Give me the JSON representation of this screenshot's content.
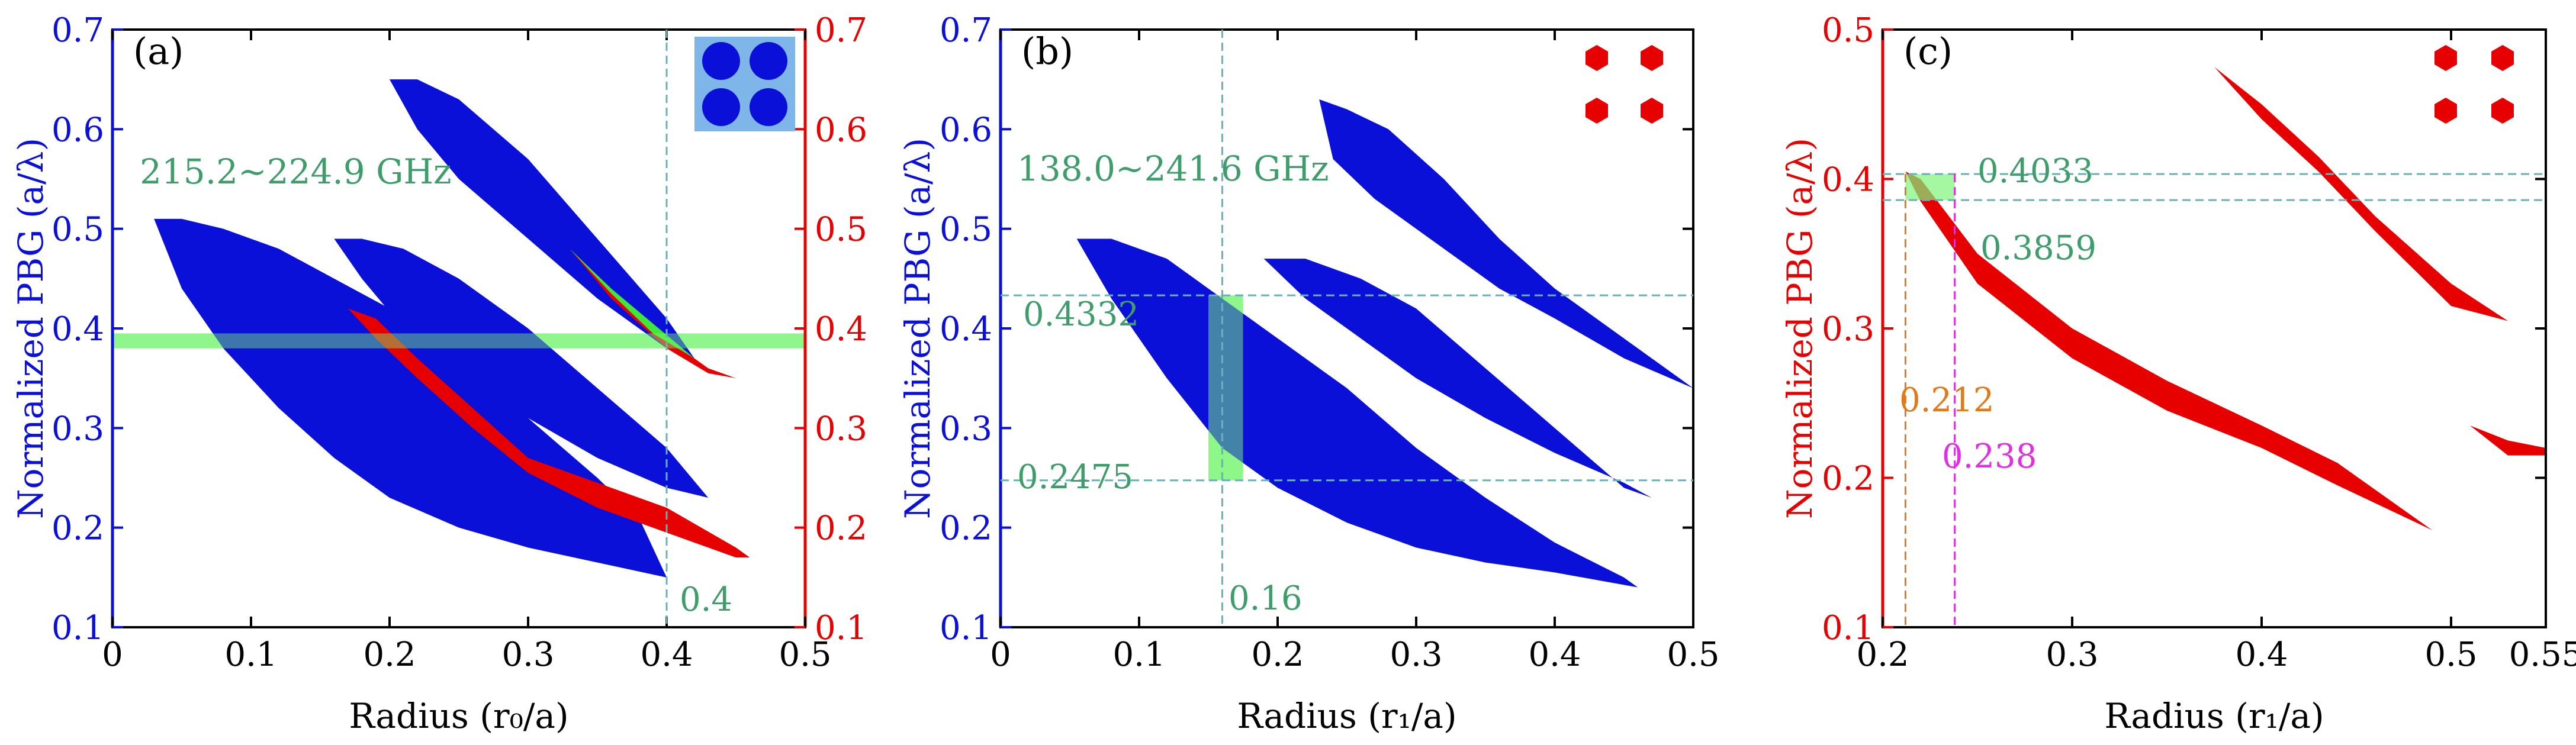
{
  "colors": {
    "blue": "#0a10d8",
    "red": "#e60000",
    "green_text": "#3f9d6c",
    "green_fill": "#7df57a",
    "dash": "#6ab0b8",
    "orange": "#e07a1a",
    "magenta": "#e030e0"
  },
  "chart_data": [
    {
      "type": "band-diagram",
      "panel": "(a)",
      "xlabel": "Radius (r₀/a)",
      "ylabel_left": "Normalized  PBG (a/λ)",
      "xlim": [
        0,
        0.5
      ],
      "ylim": [
        0.1,
        0.7
      ],
      "x_ticks": [
        "0",
        "0.1",
        "0.2",
        "0.3",
        "0.4",
        "0.5"
      ],
      "y_ticks_left": [
        "0.1",
        "0.2",
        "0.3",
        "0.4",
        "0.5",
        "0.6",
        "0.7"
      ],
      "y_ticks_right": [
        "0.1",
        "0.2",
        "0.3",
        "0.4",
        "0.5",
        "0.6",
        "0.7"
      ],
      "frequency_annotation": "215.2~224.9 GHz",
      "marker_label": "0.4",
      "marker_x": 0.4,
      "highlight_band": [
        0.38,
        0.395
      ],
      "gaps": [
        {
          "name": "blue gap 1",
          "color": "blue",
          "upper": [
            [
              0.03,
              0.51
            ],
            [
              0.05,
              0.51
            ],
            [
              0.08,
              0.5
            ],
            [
              0.12,
              0.48
            ],
            [
              0.16,
              0.45
            ],
            [
              0.2,
              0.42
            ],
            [
              0.25,
              0.37
            ],
            [
              0.3,
              0.31
            ],
            [
              0.35,
              0.25
            ],
            [
              0.38,
              0.21
            ],
            [
              0.4,
              0.15
            ]
          ],
          "lower": [
            [
              0.03,
              0.51
            ],
            [
              0.05,
              0.44
            ],
            [
              0.08,
              0.38
            ],
            [
              0.12,
              0.32
            ],
            [
              0.16,
              0.27
            ],
            [
              0.2,
              0.23
            ],
            [
              0.25,
              0.2
            ],
            [
              0.3,
              0.18
            ],
            [
              0.35,
              0.165
            ],
            [
              0.4,
              0.15
            ]
          ]
        },
        {
          "name": "blue gap 2",
          "color": "blue",
          "upper": [
            [
              0.16,
              0.49
            ],
            [
              0.18,
              0.49
            ],
            [
              0.21,
              0.48
            ],
            [
              0.25,
              0.45
            ],
            [
              0.3,
              0.4
            ],
            [
              0.35,
              0.34
            ],
            [
              0.4,
              0.28
            ],
            [
              0.43,
              0.23
            ]
          ],
          "lower": [
            [
              0.16,
              0.49
            ],
            [
              0.18,
              0.45
            ],
            [
              0.21,
              0.4
            ],
            [
              0.25,
              0.36
            ],
            [
              0.3,
              0.31
            ],
            [
              0.35,
              0.27
            ],
            [
              0.4,
              0.24
            ],
            [
              0.43,
              0.23
            ]
          ]
        },
        {
          "name": "blue gap 3",
          "color": "blue",
          "upper": [
            [
              0.2,
              0.65
            ],
            [
              0.22,
              0.65
            ],
            [
              0.25,
              0.63
            ],
            [
              0.3,
              0.57
            ],
            [
              0.35,
              0.49
            ],
            [
              0.4,
              0.41
            ],
            [
              0.42,
              0.37
            ]
          ],
          "lower": [
            [
              0.2,
              0.65
            ],
            [
              0.22,
              0.6
            ],
            [
              0.25,
              0.55
            ],
            [
              0.3,
              0.49
            ],
            [
              0.35,
              0.43
            ],
            [
              0.4,
              0.38
            ],
            [
              0.42,
              0.37
            ]
          ]
        },
        {
          "name": "red gap 1",
          "color": "red",
          "upper": [
            [
              0.17,
              0.42
            ],
            [
              0.19,
              0.41
            ],
            [
              0.22,
              0.37
            ],
            [
              0.26,
              0.32
            ],
            [
              0.3,
              0.27
            ],
            [
              0.35,
              0.245
            ],
            [
              0.4,
              0.22
            ],
            [
              0.45,
              0.18
            ],
            [
              0.46,
              0.17
            ]
          ],
          "lower": [
            [
              0.17,
              0.42
            ],
            [
              0.19,
              0.39
            ],
            [
              0.22,
              0.35
            ],
            [
              0.26,
              0.3
            ],
            [
              0.3,
              0.255
            ],
            [
              0.35,
              0.22
            ],
            [
              0.4,
              0.195
            ],
            [
              0.45,
              0.17
            ],
            [
              0.46,
              0.17
            ]
          ]
        },
        {
          "name": "red gap 2",
          "color": "red",
          "upper": [
            [
              0.33,
              0.48
            ],
            [
              0.36,
              0.44
            ],
            [
              0.4,
              0.39
            ],
            [
              0.43,
              0.36
            ],
            [
              0.45,
              0.35
            ]
          ],
          "lower": [
            [
              0.33,
              0.48
            ],
            [
              0.36,
              0.43
            ],
            [
              0.4,
              0.38
            ],
            [
              0.43,
              0.355
            ],
            [
              0.45,
              0.35
            ]
          ]
        },
        {
          "name": "overlap gap",
          "color": "green",
          "upper": [
            [
              0.33,
              0.48
            ],
            [
              0.36,
              0.44
            ],
            [
              0.39,
              0.405
            ],
            [
              0.42,
              0.37
            ]
          ],
          "lower": [
            [
              0.33,
              0.48
            ],
            [
              0.36,
              0.435
            ],
            [
              0.39,
              0.395
            ],
            [
              0.42,
              0.37
            ]
          ]
        }
      ]
    },
    {
      "type": "band-diagram",
      "panel": "(b)",
      "xlabel": "Radius (r₁/a)",
      "ylabel_left": "Normalized  PBG (a/λ)",
      "xlim": [
        0,
        0.5
      ],
      "ylim": [
        0.1,
        0.7
      ],
      "x_ticks": [
        "0",
        "0.1",
        "0.2",
        "0.3",
        "0.4",
        "0.5"
      ],
      "y_ticks_left": [
        "0.1",
        "0.2",
        "0.3",
        "0.4",
        "0.5",
        "0.6",
        "0.7"
      ],
      "frequency_annotation": "138.0~241.6 GHz",
      "upper_label": "0.4332",
      "lower_label": "0.2475",
      "upper_value": 0.4332,
      "lower_value": 0.2475,
      "marker_label": "0.16",
      "marker_x": 0.16,
      "highlight_x": [
        0.15,
        0.175
      ],
      "gaps": [
        {
          "name": "blue gap 1",
          "color": "blue",
          "upper": [
            [
              0.055,
              0.49
            ],
            [
              0.08,
              0.49
            ],
            [
              0.12,
              0.47
            ],
            [
              0.16,
              0.43
            ],
            [
              0.2,
              0.39
            ],
            [
              0.25,
              0.34
            ],
            [
              0.3,
              0.28
            ],
            [
              0.35,
              0.23
            ],
            [
              0.4,
              0.185
            ],
            [
              0.45,
              0.15
            ],
            [
              0.46,
              0.14
            ]
          ],
          "lower": [
            [
              0.055,
              0.49
            ],
            [
              0.08,
              0.43
            ],
            [
              0.12,
              0.35
            ],
            [
              0.16,
              0.28
            ],
            [
              0.2,
              0.24
            ],
            [
              0.25,
              0.205
            ],
            [
              0.3,
              0.18
            ],
            [
              0.35,
              0.165
            ],
            [
              0.4,
              0.155
            ],
            [
              0.46,
              0.14
            ]
          ]
        },
        {
          "name": "blue gap 2",
          "color": "blue",
          "upper": [
            [
              0.19,
              0.47
            ],
            [
              0.22,
              0.47
            ],
            [
              0.26,
              0.45
            ],
            [
              0.3,
              0.42
            ],
            [
              0.35,
              0.36
            ],
            [
              0.4,
              0.3
            ],
            [
              0.45,
              0.24
            ],
            [
              0.47,
              0.23
            ]
          ],
          "lower": [
            [
              0.19,
              0.47
            ],
            [
              0.22,
              0.43
            ],
            [
              0.26,
              0.39
            ],
            [
              0.3,
              0.35
            ],
            [
              0.35,
              0.31
            ],
            [
              0.4,
              0.275
            ],
            [
              0.45,
              0.245
            ],
            [
              0.47,
              0.23
            ]
          ]
        },
        {
          "name": "blue gap 3",
          "color": "blue",
          "upper": [
            [
              0.23,
              0.63
            ],
            [
              0.25,
              0.62
            ],
            [
              0.28,
              0.6
            ],
            [
              0.32,
              0.55
            ],
            [
              0.36,
              0.49
            ],
            [
              0.4,
              0.44
            ],
            [
              0.45,
              0.39
            ],
            [
              0.5,
              0.34
            ]
          ],
          "lower": [
            [
              0.23,
              0.63
            ],
            [
              0.24,
              0.57
            ],
            [
              0.27,
              0.53
            ],
            [
              0.31,
              0.49
            ],
            [
              0.36,
              0.44
            ],
            [
              0.4,
              0.41
            ],
            [
              0.45,
              0.37
            ],
            [
              0.5,
              0.34
            ]
          ]
        }
      ]
    },
    {
      "type": "band-diagram",
      "panel": "(c)",
      "xlabel": "Radius (r₁/a)",
      "ylabel_left": "Normalized  PBG (a/λ)",
      "xlim": [
        0.2,
        0.55
      ],
      "ylim": [
        0.1,
        0.5
      ],
      "x_ticks": [
        "0.2",
        "0.3",
        "0.4",
        "0.5",
        "0.55"
      ],
      "y_ticks_left": [
        "0.1",
        "0.2",
        "0.3",
        "0.4",
        "0.5"
      ],
      "upper_label": "0.4033",
      "lower_label": "0.3859",
      "upper_value": 0.4033,
      "lower_value": 0.3859,
      "left_marker_label": "0.212",
      "right_marker_label": "0.238",
      "left_marker_x": 0.212,
      "right_marker_x": 0.238,
      "gaps": [
        {
          "name": "red gap 1",
          "color": "red",
          "upper": [
            [
              0.212,
              0.405
            ],
            [
              0.22,
              0.4
            ],
            [
              0.25,
              0.35
            ],
            [
              0.3,
              0.3
            ],
            [
              0.35,
              0.265
            ],
            [
              0.4,
              0.235
            ],
            [
              0.44,
              0.21
            ],
            [
              0.49,
              0.165
            ]
          ],
          "lower": [
            [
              0.212,
              0.405
            ],
            [
              0.22,
              0.385
            ],
            [
              0.25,
              0.33
            ],
            [
              0.3,
              0.28
            ],
            [
              0.35,
              0.245
            ],
            [
              0.4,
              0.22
            ],
            [
              0.44,
              0.195
            ],
            [
              0.49,
              0.165
            ]
          ]
        },
        {
          "name": "red gap 2",
          "color": "red",
          "upper": [
            [
              0.375,
              0.475
            ],
            [
              0.4,
              0.45
            ],
            [
              0.43,
              0.415
            ],
            [
              0.46,
              0.375
            ],
            [
              0.5,
              0.33
            ],
            [
              0.53,
              0.305
            ]
          ],
          "lower": [
            [
              0.375,
              0.475
            ],
            [
              0.4,
              0.44
            ],
            [
              0.43,
              0.405
            ],
            [
              0.46,
              0.365
            ],
            [
              0.5,
              0.315
            ],
            [
              0.53,
              0.305
            ]
          ]
        },
        {
          "name": "red gap 3",
          "color": "red",
          "upper": [
            [
              0.51,
              0.235
            ],
            [
              0.53,
              0.225
            ],
            [
              0.55,
              0.22
            ]
          ],
          "lower": [
            [
              0.51,
              0.235
            ],
            [
              0.53,
              0.215
            ],
            [
              0.55,
              0.215
            ]
          ]
        }
      ]
    }
  ]
}
